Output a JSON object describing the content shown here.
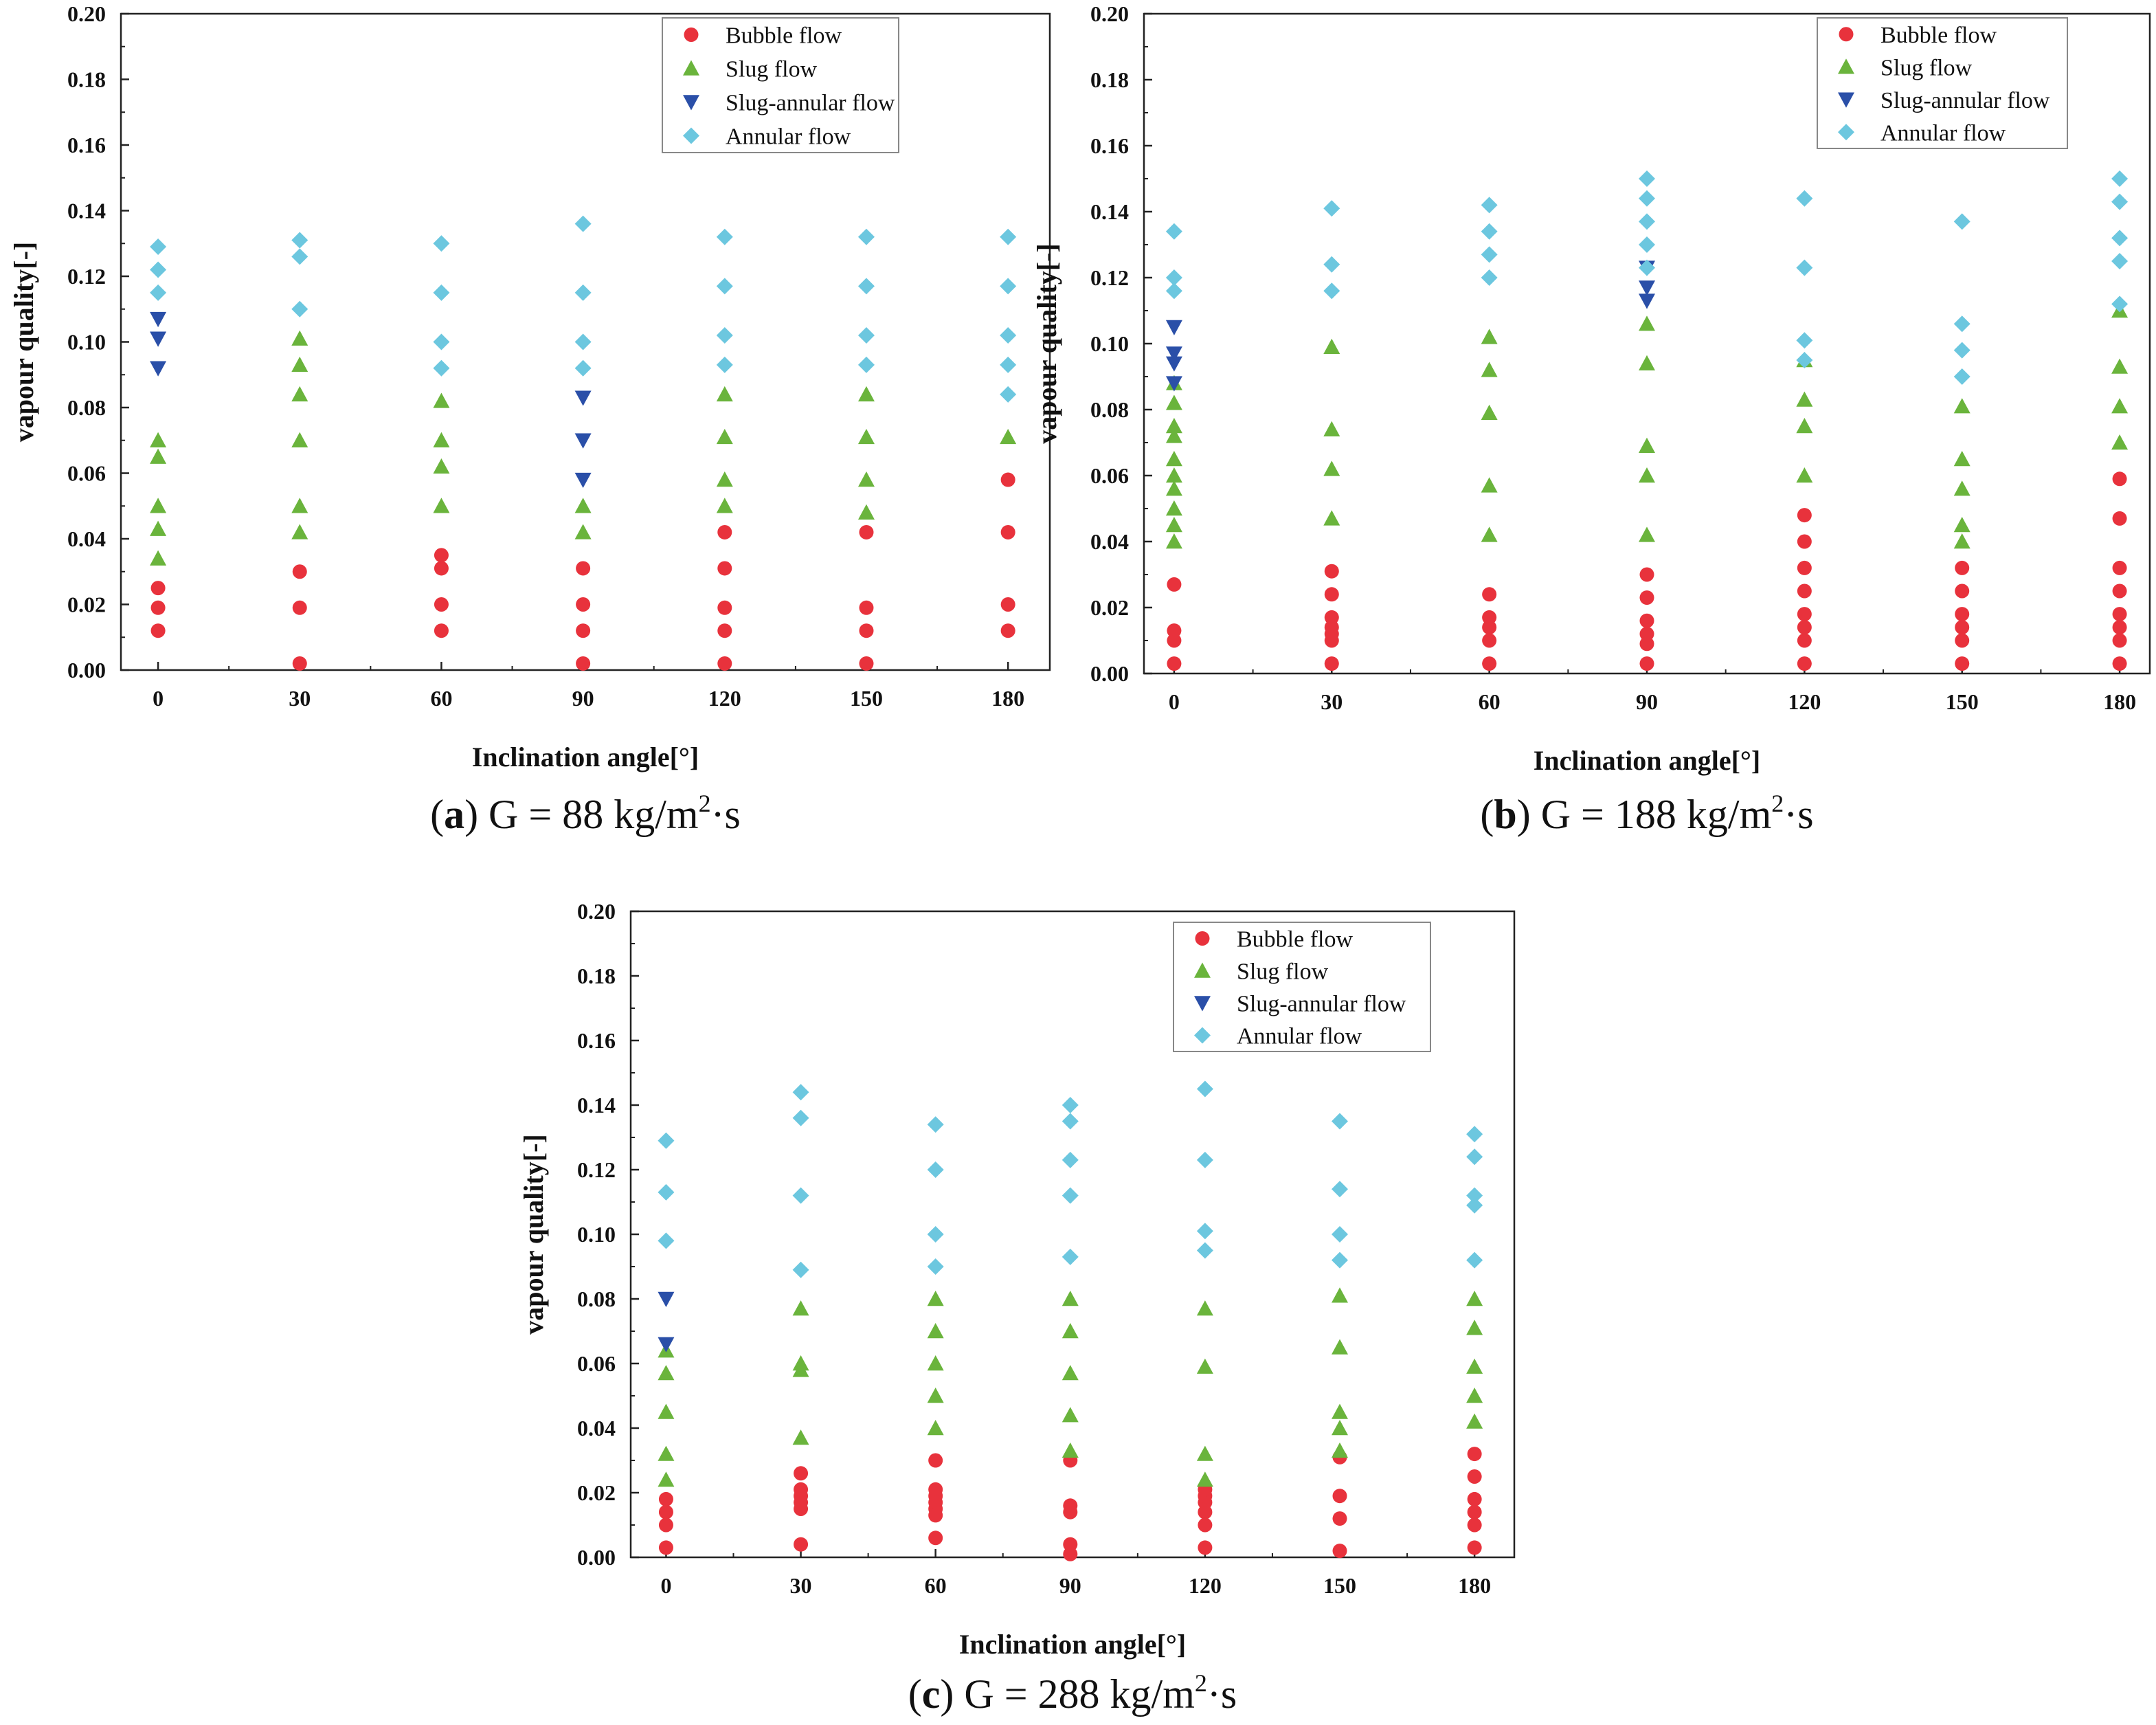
{
  "colors": {
    "bubble": "#e8323c",
    "slug": "#6ab43c",
    "slug_annular": "#2a4fa8",
    "annular": "#6cc7df",
    "axis": "#222222"
  },
  "chart_data": [
    {
      "type": "scatter",
      "panel": "a",
      "caption": {
        "letter": "a",
        "text": "G = 88 kg/m",
        "sup": "2",
        "suffix": "·s",
        "paren_open": "(",
        "paren_close": ")"
      },
      "xlabel": "Inclination angle[°]",
      "ylabel": "vapour quality[-]",
      "xticks": [
        "0",
        "30",
        "60",
        "90",
        "120",
        "150",
        "180"
      ],
      "yticks": [
        "0.00",
        "0.02",
        "0.04",
        "0.06",
        "0.08",
        "0.10",
        "0.12",
        "0.14",
        "0.16",
        "0.18",
        "0.20"
      ],
      "ylim": [
        0,
        0.2
      ],
      "legend_position": "top-right",
      "series": [
        {
          "name": "Bubble flow",
          "marker": "circle",
          "x": [
            0,
            0,
            0,
            30,
            30,
            30,
            60,
            60,
            60,
            60,
            90,
            90,
            90,
            90,
            120,
            120,
            120,
            120,
            120,
            150,
            150,
            150,
            150,
            180,
            180,
            180,
            180
          ],
          "y": [
            0.012,
            0.019,
            0.025,
            0.002,
            0.019,
            0.03,
            0.012,
            0.02,
            0.031,
            0.035,
            0.002,
            0.012,
            0.02,
            0.031,
            0.002,
            0.012,
            0.019,
            0.031,
            0.042,
            0.002,
            0.012,
            0.019,
            0.042,
            0.012,
            0.02,
            0.042,
            0.058
          ]
        },
        {
          "name": "Slug flow",
          "marker": "triangle-up",
          "x": [
            0,
            0,
            0,
            0,
            0,
            30,
            30,
            30,
            30,
            30,
            30,
            60,
            60,
            60,
            60,
            90,
            90,
            120,
            120,
            120,
            120,
            150,
            150,
            150,
            150,
            180
          ],
          "y": [
            0.034,
            0.043,
            0.05,
            0.065,
            0.07,
            0.042,
            0.05,
            0.07,
            0.084,
            0.093,
            0.101,
            0.05,
            0.062,
            0.07,
            0.082,
            0.042,
            0.05,
            0.05,
            0.058,
            0.071,
            0.084,
            0.048,
            0.058,
            0.071,
            0.084,
            0.071
          ]
        },
        {
          "name": "Slug-annular flow",
          "marker": "triangle-down",
          "x": [
            0,
            0,
            0,
            90,
            90,
            90
          ],
          "y": [
            0.092,
            0.101,
            0.107,
            0.058,
            0.07,
            0.083
          ]
        },
        {
          "name": "Annular flow",
          "marker": "diamond",
          "x": [
            0,
            0,
            0,
            30,
            30,
            30,
            60,
            60,
            60,
            60,
            90,
            90,
            90,
            90,
            120,
            120,
            120,
            120,
            150,
            150,
            150,
            150,
            180,
            180,
            180,
            180,
            180
          ],
          "y": [
            0.115,
            0.122,
            0.129,
            0.11,
            0.126,
            0.131,
            0.092,
            0.1,
            0.115,
            0.13,
            0.092,
            0.1,
            0.115,
            0.136,
            0.093,
            0.102,
            0.117,
            0.132,
            0.093,
            0.102,
            0.117,
            0.132,
            0.084,
            0.093,
            0.102,
            0.117,
            0.132
          ]
        }
      ]
    },
    {
      "type": "scatter",
      "panel": "b",
      "caption": {
        "letter": "b",
        "text": "G = 188 kg/m",
        "sup": "2",
        "suffix": "·s",
        "paren_open": "(",
        "paren_close": ")"
      },
      "xlabel": "Inclination angle[°]",
      "ylabel": "vapour quality[-]",
      "xticks": [
        "0",
        "30",
        "60",
        "90",
        "120",
        "150",
        "180"
      ],
      "yticks": [
        "0.00",
        "0.02",
        "0.04",
        "0.06",
        "0.08",
        "0.10",
        "0.12",
        "0.14",
        "0.16",
        "0.18",
        "0.20"
      ],
      "ylim": [
        0,
        0.2
      ],
      "legend_position": "top-right",
      "series": [
        {
          "name": "Bubble flow",
          "marker": "circle",
          "x": [
            0,
            0,
            0,
            0,
            30,
            30,
            30,
            30,
            30,
            30,
            30,
            60,
            60,
            60,
            60,
            60,
            90,
            90,
            90,
            90,
            90,
            90,
            120,
            120,
            120,
            120,
            120,
            120,
            120,
            120,
            150,
            150,
            150,
            150,
            150,
            150,
            180,
            180,
            180,
            180,
            180,
            180,
            180,
            180
          ],
          "y": [
            0.003,
            0.01,
            0.013,
            0.027,
            0.003,
            0.01,
            0.012,
            0.014,
            0.017,
            0.024,
            0.031,
            0.003,
            0.01,
            0.014,
            0.017,
            0.024,
            0.003,
            0.009,
            0.012,
            0.016,
            0.023,
            0.03,
            0.003,
            0.01,
            0.014,
            0.018,
            0.025,
            0.032,
            0.04,
            0.048,
            0.003,
            0.01,
            0.014,
            0.018,
            0.025,
            0.032,
            0.003,
            0.01,
            0.014,
            0.018,
            0.025,
            0.032,
            0.047,
            0.059
          ]
        },
        {
          "name": "Slug flow",
          "marker": "triangle-up",
          "x": [
            0,
            0,
            0,
            0,
            0,
            0,
            0,
            0,
            0,
            0,
            30,
            30,
            30,
            30,
            60,
            60,
            60,
            60,
            60,
            90,
            90,
            90,
            90,
            90,
            120,
            120,
            120,
            120,
            150,
            150,
            150,
            150,
            150,
            180,
            180,
            180,
            180
          ],
          "y": [
            0.04,
            0.045,
            0.05,
            0.056,
            0.06,
            0.065,
            0.072,
            0.075,
            0.082,
            0.088,
            0.047,
            0.062,
            0.074,
            0.099,
            0.042,
            0.057,
            0.079,
            0.092,
            0.102,
            0.042,
            0.06,
            0.069,
            0.094,
            0.106,
            0.06,
            0.075,
            0.083,
            0.095,
            0.04,
            0.045,
            0.056,
            0.065,
            0.081,
            0.07,
            0.081,
            0.093,
            0.11
          ]
        },
        {
          "name": "Slug-annular flow",
          "marker": "triangle-down",
          "x": [
            0,
            0,
            0,
            0,
            90,
            90,
            90
          ],
          "y": [
            0.088,
            0.094,
            0.097,
            0.105,
            0.113,
            0.117,
            0.123
          ]
        },
        {
          "name": "Annular flow",
          "marker": "diamond",
          "x": [
            0,
            0,
            0,
            30,
            30,
            30,
            60,
            60,
            60,
            60,
            90,
            90,
            90,
            90,
            90,
            120,
            120,
            120,
            120,
            150,
            150,
            150,
            150,
            180,
            180,
            180,
            180,
            180
          ],
          "y": [
            0.116,
            0.12,
            0.134,
            0.116,
            0.124,
            0.141,
            0.12,
            0.127,
            0.134,
            0.142,
            0.13,
            0.137,
            0.144,
            0.15,
            0.123,
            0.095,
            0.101,
            0.123,
            0.144,
            0.09,
            0.098,
            0.106,
            0.137,
            0.112,
            0.125,
            0.132,
            0.143,
            0.15
          ]
        }
      ]
    },
    {
      "type": "scatter",
      "panel": "c",
      "caption": {
        "letter": "c",
        "text": "G = 288 kg/m",
        "sup": "2",
        "suffix": "·s",
        "paren_open": "(",
        "paren_close": ")"
      },
      "xlabel": "Inclination angle[°]",
      "ylabel": "vapour quality[-]",
      "xticks": [
        "0",
        "30",
        "60",
        "90",
        "120",
        "150",
        "180"
      ],
      "yticks": [
        "0.00",
        "0.02",
        "0.04",
        "0.06",
        "0.08",
        "0.10",
        "0.12",
        "0.14",
        "0.16",
        "0.18",
        "0.20"
      ],
      "ylim": [
        0,
        0.2
      ],
      "legend_position": "top-right",
      "series": [
        {
          "name": "Bubble flow",
          "marker": "circle",
          "x": [
            0,
            0,
            0,
            0,
            30,
            30,
            30,
            30,
            30,
            30,
            60,
            60,
            60,
            60,
            60,
            60,
            60,
            90,
            90,
            90,
            90,
            90,
            120,
            120,
            120,
            120,
            120,
            120,
            150,
            150,
            150,
            150,
            180,
            180,
            180,
            180,
            180,
            180
          ],
          "y": [
            0.003,
            0.01,
            0.014,
            0.018,
            0.004,
            0.015,
            0.017,
            0.019,
            0.021,
            0.026,
            0.006,
            0.013,
            0.015,
            0.017,
            0.019,
            0.021,
            0.03,
            0.001,
            0.004,
            0.014,
            0.016,
            0.03,
            0.003,
            0.01,
            0.014,
            0.017,
            0.019,
            0.021,
            0.002,
            0.012,
            0.019,
            0.031,
            0.003,
            0.01,
            0.014,
            0.018,
            0.025,
            0.032
          ]
        },
        {
          "name": "Slug flow",
          "marker": "triangle-up",
          "x": [
            0,
            0,
            0,
            0,
            0,
            30,
            30,
            30,
            30,
            60,
            60,
            60,
            60,
            60,
            90,
            90,
            90,
            90,
            90,
            120,
            120,
            120,
            120,
            150,
            150,
            150,
            150,
            150,
            180,
            180,
            180,
            180,
            180
          ],
          "y": [
            0.024,
            0.032,
            0.045,
            0.057,
            0.064,
            0.037,
            0.058,
            0.06,
            0.077,
            0.04,
            0.05,
            0.06,
            0.07,
            0.08,
            0.033,
            0.044,
            0.057,
            0.07,
            0.08,
            0.024,
            0.032,
            0.059,
            0.077,
            0.033,
            0.04,
            0.045,
            0.065,
            0.081,
            0.042,
            0.05,
            0.059,
            0.071,
            0.08
          ]
        },
        {
          "name": "Slug-annular flow",
          "marker": "triangle-down",
          "x": [
            0,
            0
          ],
          "y": [
            0.066,
            0.08
          ]
        },
        {
          "name": "Annular flow",
          "marker": "diamond",
          "x": [
            0,
            0,
            0,
            30,
            30,
            30,
            30,
            60,
            60,
            60,
            60,
            90,
            90,
            90,
            90,
            90,
            120,
            120,
            120,
            120,
            150,
            150,
            150,
            150,
            180,
            180,
            180,
            180,
            180
          ],
          "y": [
            0.098,
            0.113,
            0.129,
            0.089,
            0.112,
            0.136,
            0.144,
            0.09,
            0.1,
            0.12,
            0.134,
            0.093,
            0.112,
            0.123,
            0.135,
            0.14,
            0.095,
            0.101,
            0.123,
            0.145,
            0.092,
            0.1,
            0.114,
            0.135,
            0.092,
            0.109,
            0.112,
            0.124,
            0.131
          ]
        }
      ]
    }
  ]
}
